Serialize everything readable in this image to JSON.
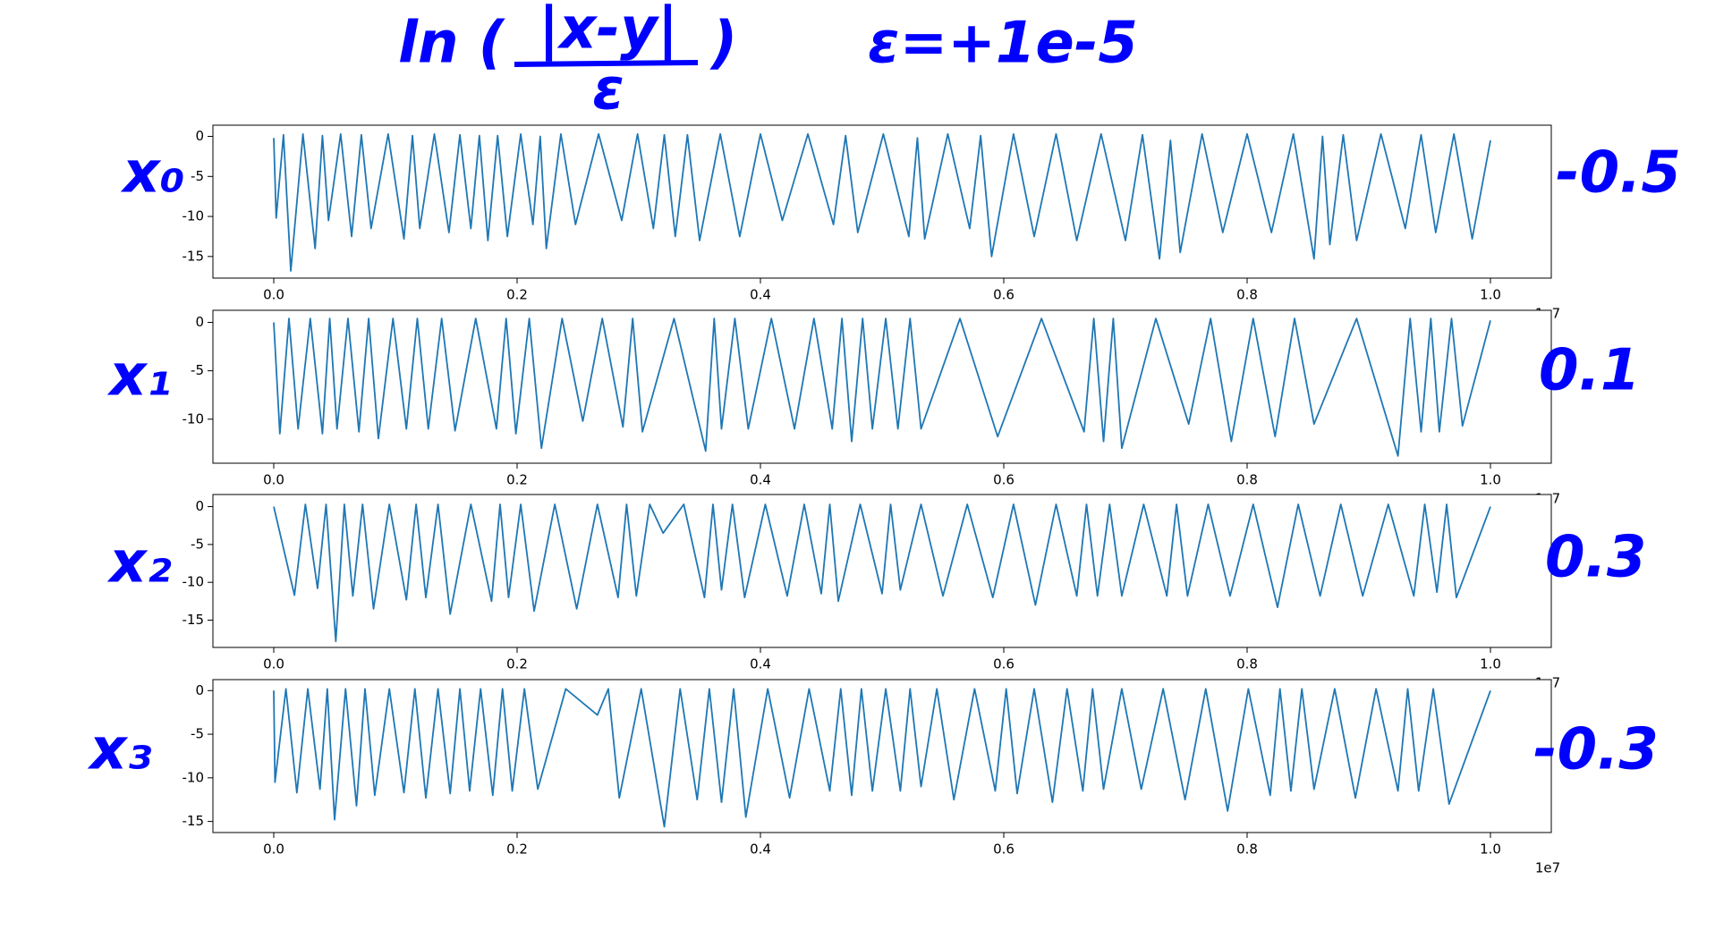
{
  "annotations": {
    "formula_prefix": "ln (",
    "formula_numerator": "|x-y|",
    "formula_denominator": "ε",
    "formula_suffix": ")",
    "epsilon": "ε=+1e-5"
  },
  "chart_data": [
    {
      "type": "line",
      "label": "x₀",
      "annotation": "-0.5",
      "color": "#1f77b4",
      "x_scale_label": "1e7",
      "xlim": [
        -0.05,
        1.05
      ],
      "ylim": [
        -17.7,
        1.4
      ],
      "xticks": [
        {
          "value": 0,
          "label": "0.0"
        },
        0.2,
        0.4,
        0.6,
        0.8,
        {
          "value": 1,
          "label": "1.0"
        }
      ],
      "yticks": [
        0,
        -5,
        -10,
        -15
      ],
      "x": [
        0,
        0.002,
        0.008,
        0.014,
        0.024,
        0.034,
        0.04,
        0.045,
        0.055,
        0.064,
        0.072,
        0.08,
        0.094,
        0.107,
        0.114,
        0.12,
        0.132,
        0.144,
        0.153,
        0.162,
        0.169,
        0.176,
        0.184,
        0.192,
        0.203,
        0.213,
        0.219,
        0.224,
        0.236,
        0.248,
        0.267,
        0.286,
        0.299,
        0.312,
        0.321,
        0.33,
        0.34,
        0.35,
        0.367,
        0.383,
        0.4,
        0.418,
        0.439,
        0.46,
        0.47,
        0.48,
        0.501,
        0.522,
        0.529,
        0.535,
        0.554,
        0.572,
        0.581,
        0.59,
        0.608,
        0.625,
        0.643,
        0.66,
        0.68,
        0.7,
        0.714,
        0.728,
        0.737,
        0.745,
        0.763,
        0.78,
        0.8,
        0.82,
        0.838,
        0.855,
        0.862,
        0.868,
        0.879,
        0.89,
        0.91,
        0.93,
        0.943,
        0.955,
        0.97,
        0.985,
        1.0
      ],
      "values": [
        -0.2,
        -10.2,
        0.2,
        -16.8,
        0.3,
        -14,
        0.1,
        -10.5,
        0.3,
        -12.5,
        0.2,
        -11.5,
        0.3,
        -12.8,
        0.1,
        -11.5,
        0.3,
        -12,
        0.2,
        -11.5,
        0.1,
        -13,
        0.1,
        -12.5,
        0.3,
        -11,
        0.0,
        -14,
        0.3,
        -11,
        0.3,
        -10.5,
        0.3,
        -11.5,
        0.2,
        -12.5,
        0.2,
        -13,
        0.3,
        -12.5,
        0.3,
        -10.5,
        0.3,
        -11,
        0.1,
        -12,
        0.3,
        -12.5,
        -0.2,
        -12.8,
        0.3,
        -11.5,
        0.1,
        -15,
        0.3,
        -12.5,
        0.3,
        -13,
        0.3,
        -13,
        0.2,
        -15.3,
        -0.5,
        -14.5,
        0.3,
        -12,
        0.3,
        -12,
        0.3,
        -15.3,
        0.0,
        -13.5,
        0.2,
        -13,
        0.3,
        -11.5,
        0.2,
        -12,
        0.3,
        -12.8,
        -0.5
      ]
    },
    {
      "type": "line",
      "label": "x₁",
      "annotation": "0.1",
      "color": "#1f77b4",
      "x_scale_label": "1e7",
      "xlim": [
        -0.05,
        1.05
      ],
      "ylim": [
        -14.55,
        1.25
      ],
      "xticks": [
        {
          "value": 0,
          "label": "0.0"
        },
        0.2,
        0.4,
        0.6,
        0.8,
        {
          "value": 1,
          "label": "1.0"
        }
      ],
      "yticks": [
        0,
        -5,
        -10
      ],
      "x": [
        0,
        0.005,
        0.0125,
        0.02,
        0.03,
        0.04,
        0.046,
        0.052,
        0.061,
        0.07,
        0.078,
        0.086,
        0.098,
        0.109,
        0.118,
        0.127,
        0.138,
        0.149,
        0.166,
        0.183,
        0.191,
        0.199,
        0.21,
        0.22,
        0.237,
        0.254,
        0.27,
        0.287,
        0.295,
        0.303,
        0.329,
        0.355,
        0.362,
        0.368,
        0.379,
        0.39,
        0.409,
        0.428,
        0.444,
        0.459,
        0.467,
        0.475,
        0.484,
        0.492,
        0.503,
        0.513,
        0.523,
        0.532,
        0.564,
        0.595,
        0.631,
        0.666,
        0.674,
        0.682,
        0.69,
        0.697,
        0.725,
        0.752,
        0.77,
        0.787,
        0.805,
        0.823,
        0.839,
        0.855,
        0.89,
        0.924,
        0.934,
        0.943,
        0.951,
        0.958,
        0.968,
        0.977,
        1.0
      ],
      "values": [
        0,
        -11.5,
        0.4,
        -11,
        0.4,
        -11.5,
        0.4,
        -11,
        0.4,
        -11.3,
        0.4,
        -12,
        0.4,
        -11,
        0.4,
        -11,
        0.4,
        -11.2,
        0.4,
        -11,
        0.4,
        -11.5,
        0.4,
        -13,
        0.4,
        -10.2,
        0.4,
        -10.8,
        0.4,
        -11.3,
        0.4,
        -13.3,
        0.4,
        -11,
        0.4,
        -11,
        0.4,
        -11,
        0.4,
        -11,
        0.4,
        -12.3,
        0.4,
        -11,
        0.4,
        -11,
        0.4,
        -11,
        0.4,
        -11.8,
        0.4,
        -11.3,
        0.4,
        -12.3,
        0.4,
        -13,
        0.4,
        -10.5,
        0.4,
        -12.3,
        0.4,
        -11.8,
        0.4,
        -10.5,
        0.4,
        -13.8,
        0.4,
        -11.3,
        0.4,
        -11.3,
        0.4,
        -10.7,
        0.2
      ]
    },
    {
      "type": "line",
      "label": "x₂",
      "annotation": "0.3",
      "color": "#1f77b4",
      "x_scale_label": "1e7",
      "xlim": [
        -0.05,
        1.05
      ],
      "ylim": [
        -18.6,
        1.6
      ],
      "xticks": [
        {
          "value": 0,
          "label": "0.0"
        },
        0.2,
        0.4,
        0.6,
        0.8,
        {
          "value": 1,
          "label": "1.0"
        }
      ],
      "yticks": [
        0,
        -5,
        -10,
        -15
      ],
      "x": [
        0,
        0.017,
        0.026,
        0.036,
        0.043,
        0.051,
        0.058,
        0.065,
        0.073,
        0.082,
        0.095,
        0.109,
        0.117,
        0.125,
        0.135,
        0.145,
        0.162,
        0.179,
        0.186,
        0.193,
        0.203,
        0.214,
        0.231,
        0.249,
        0.266,
        0.283,
        0.29,
        0.298,
        0.309,
        0.32,
        0.337,
        0.354,
        0.361,
        0.368,
        0.377,
        0.387,
        0.404,
        0.422,
        0.436,
        0.45,
        0.457,
        0.464,
        0.482,
        0.5,
        0.507,
        0.515,
        0.532,
        0.55,
        0.57,
        0.591,
        0.608,
        0.626,
        0.643,
        0.66,
        0.668,
        0.677,
        0.687,
        0.697,
        0.715,
        0.734,
        0.742,
        0.751,
        0.768,
        0.786,
        0.805,
        0.825,
        0.842,
        0.86,
        0.877,
        0.895,
        0.916,
        0.937,
        0.946,
        0.956,
        0.964,
        0.972,
        1.0
      ],
      "values": [
        0,
        -11.7,
        0.3,
        -10.8,
        0.3,
        -17.8,
        0.3,
        -11.8,
        0.3,
        -13.5,
        0.3,
        -12.3,
        0.3,
        -12,
        0.3,
        -14.2,
        0.3,
        -12.5,
        0.3,
        -12,
        0.3,
        -13.8,
        0.3,
        -13.5,
        0.3,
        -12,
        0.3,
        -11.8,
        0.3,
        -3.5,
        0.3,
        -12,
        0.3,
        -11,
        0.3,
        -12,
        0.3,
        -11.8,
        0.3,
        -11.5,
        0.3,
        -12.5,
        0.3,
        -11.5,
        0.3,
        -11,
        0.3,
        -11.8,
        0.3,
        -12,
        0.3,
        -13,
        0.3,
        -11.8,
        0.3,
        -11.8,
        0.3,
        -11.8,
        0.3,
        -11.8,
        0.3,
        -11.8,
        0.3,
        -11.8,
        0.3,
        -13.3,
        0.3,
        -11.8,
        0.3,
        -11.8,
        0.3,
        -11.8,
        0.3,
        -11.3,
        0.3,
        -12,
        0
      ]
    },
    {
      "type": "line",
      "label": "x₃",
      "annotation": "-0.3",
      "color": "#1f77b4",
      "x_scale_label": "1e7",
      "xlim": [
        -0.05,
        1.05
      ],
      "ylim": [
        -16.27,
        1.26
      ],
      "xticks": [
        {
          "value": 0,
          "label": "0.0"
        },
        0.2,
        0.4,
        0.6,
        0.8,
        {
          "value": 1,
          "label": "1.0"
        }
      ],
      "yticks": [
        0,
        -5,
        -10,
        -15
      ],
      "x": [
        0,
        0.001,
        0.01,
        0.019,
        0.028,
        0.038,
        0.044,
        0.05,
        0.059,
        0.068,
        0.075,
        0.083,
        0.095,
        0.107,
        0.116,
        0.125,
        0.135,
        0.145,
        0.153,
        0.161,
        0.17,
        0.18,
        0.188,
        0.196,
        0.206,
        0.217,
        0.24,
        0.266,
        0.275,
        0.284,
        0.302,
        0.321,
        0.334,
        0.348,
        0.358,
        0.368,
        0.378,
        0.388,
        0.406,
        0.424,
        0.44,
        0.457,
        0.466,
        0.475,
        0.483,
        0.492,
        0.503,
        0.515,
        0.523,
        0.532,
        0.545,
        0.559,
        0.576,
        0.593,
        0.602,
        0.611,
        0.625,
        0.64,
        0.652,
        0.665,
        0.673,
        0.682,
        0.697,
        0.713,
        0.731,
        0.749,
        0.766,
        0.784,
        0.801,
        0.819,
        0.827,
        0.836,
        0.845,
        0.855,
        0.872,
        0.889,
        0.906,
        0.924,
        0.932,
        0.941,
        0.953,
        0.966,
        1.0
      ],
      "values": [
        0,
        -10.5,
        0.2,
        -11.7,
        0.2,
        -11.3,
        0.2,
        -14.8,
        0.2,
        -13.2,
        0.2,
        -12,
        0.2,
        -11.7,
        0.2,
        -12.3,
        0.2,
        -11.8,
        0.2,
        -11.5,
        0.2,
        -12,
        0.2,
        -11.5,
        0.2,
        -11.3,
        0.2,
        -2.8,
        0.2,
        -12.3,
        0.2,
        -15.6,
        0.2,
        -12.5,
        0.2,
        -12.8,
        0.2,
        -14.5,
        0.2,
        -12.3,
        0.2,
        -11.5,
        0.2,
        -12,
        0.2,
        -11.5,
        0.2,
        -11.5,
        0.2,
        -11,
        0.2,
        -12.5,
        0.2,
        -11.5,
        0.2,
        -11.8,
        0.2,
        -12.8,
        0.2,
        -11.5,
        0.2,
        -11.3,
        0.2,
        -11.3,
        0.2,
        -12.5,
        0.2,
        -13.8,
        0.2,
        -12,
        0.2,
        -11.5,
        0.2,
        -11.3,
        0.2,
        -12.3,
        0.2,
        -11.5,
        0.2,
        -11.5,
        0.2,
        -13,
        0
      ]
    }
  ]
}
